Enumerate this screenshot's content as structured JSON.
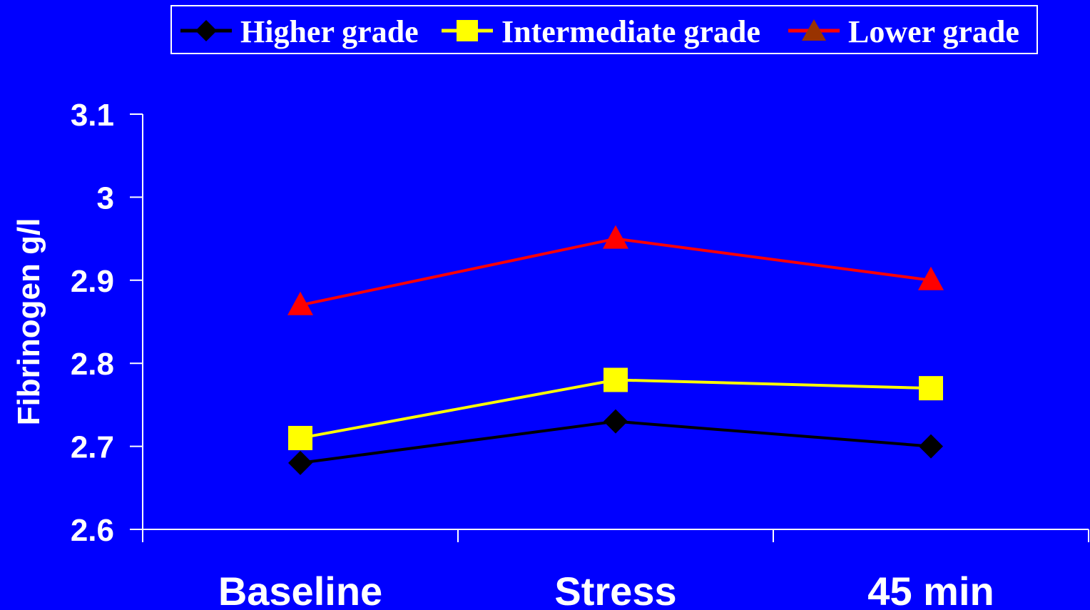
{
  "chart_data": {
    "type": "line",
    "categories": [
      "Baseline",
      "Stress",
      "45 min"
    ],
    "ylabel": "Fibrinogen g/l",
    "ylim": [
      2.6,
      3.1
    ],
    "yticks": [
      "3.1",
      "3",
      "2.9",
      "2.8",
      "2.7",
      "2.6"
    ],
    "grid": false,
    "legend_position": "top",
    "background_color": "#0000FF",
    "axis_color": "#FFFFFF",
    "series": [
      {
        "name": "Higher grade",
        "values": [
          2.68,
          2.73,
          2.7
        ],
        "color": "#000000",
        "marker": "diamond"
      },
      {
        "name": "Intermediate grade",
        "values": [
          2.71,
          2.78,
          2.77
        ],
        "color": "#FFFF00",
        "marker": "square"
      },
      {
        "name": "Lower grade",
        "values": [
          2.87,
          2.95,
          2.9
        ],
        "color": "#FF0000",
        "marker": "triangle",
        "legend_marker_color": "#993300"
      }
    ]
  }
}
